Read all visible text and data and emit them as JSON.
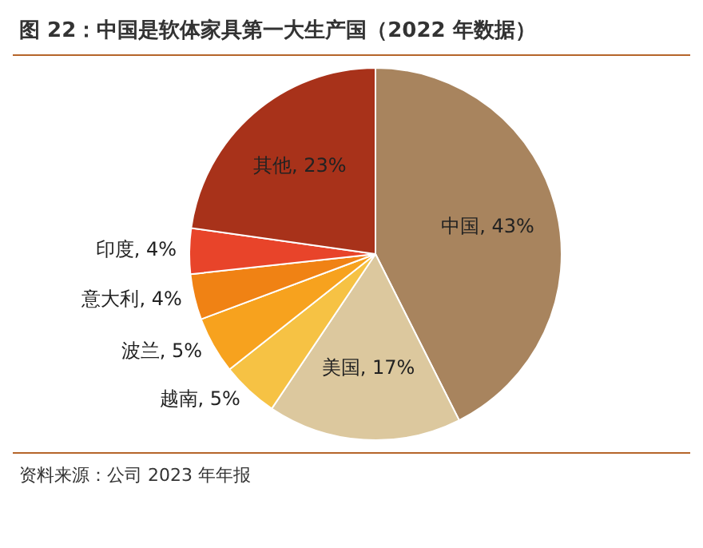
{
  "chart_data": {
    "type": "pie",
    "title": "图 22：中国是软体家具第一大生产国（2022 年数据）",
    "categories": [
      "中国",
      "美国",
      "越南",
      "波兰",
      "意大利",
      "印度",
      "其他"
    ],
    "values": [
      43,
      17,
      5,
      5,
      4,
      4,
      23
    ],
    "colors": [
      "#a8845e",
      "#dcc89e",
      "#f6c244",
      "#f7a21e",
      "#f08214",
      "#e8442a",
      "#a8321a"
    ],
    "value_labels": [
      "43%",
      "17%",
      "5%",
      "5%",
      "4%",
      "4%",
      "23%"
    ],
    "legend": false,
    "annotations": [
      "资料来源：公司 2023 年年报"
    ]
  }
}
